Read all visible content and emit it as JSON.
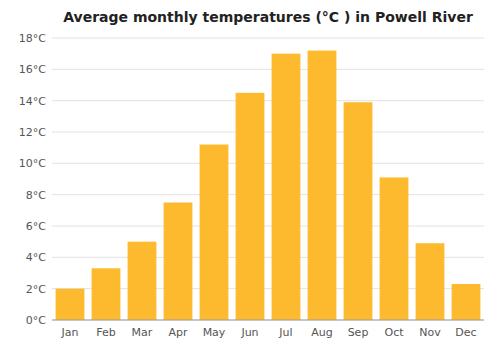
{
  "chart_data": {
    "type": "bar",
    "title": "Average monthly temperatures (°C ) in Powell River",
    "categories": [
      "Jan",
      "Feb",
      "Mar",
      "Apr",
      "May",
      "Jun",
      "Jul",
      "Aug",
      "Sep",
      "Oct",
      "Nov",
      "Dec"
    ],
    "values": [
      2.0,
      3.3,
      5.0,
      7.5,
      11.2,
      14.5,
      17.0,
      17.2,
      13.9,
      9.1,
      4.9,
      2.3
    ],
    "color": "#FDBA2E",
    "ylim": [
      0,
      18
    ],
    "yticks": [
      {
        "value": 0,
        "label": "0°C"
      },
      {
        "value": 2,
        "label": "2°C"
      },
      {
        "value": 4,
        "label": "4°C"
      },
      {
        "value": 6,
        "label": "6°C"
      },
      {
        "value": 8,
        "label": "8°C"
      },
      {
        "value": 10,
        "label": "10°C"
      },
      {
        "value": 12,
        "label": "12°C"
      },
      {
        "value": 14,
        "label": "14°C"
      },
      {
        "value": 16,
        "label": "16°C"
      },
      {
        "value": 18,
        "label": "18°C"
      }
    ],
    "grid": true
  }
}
